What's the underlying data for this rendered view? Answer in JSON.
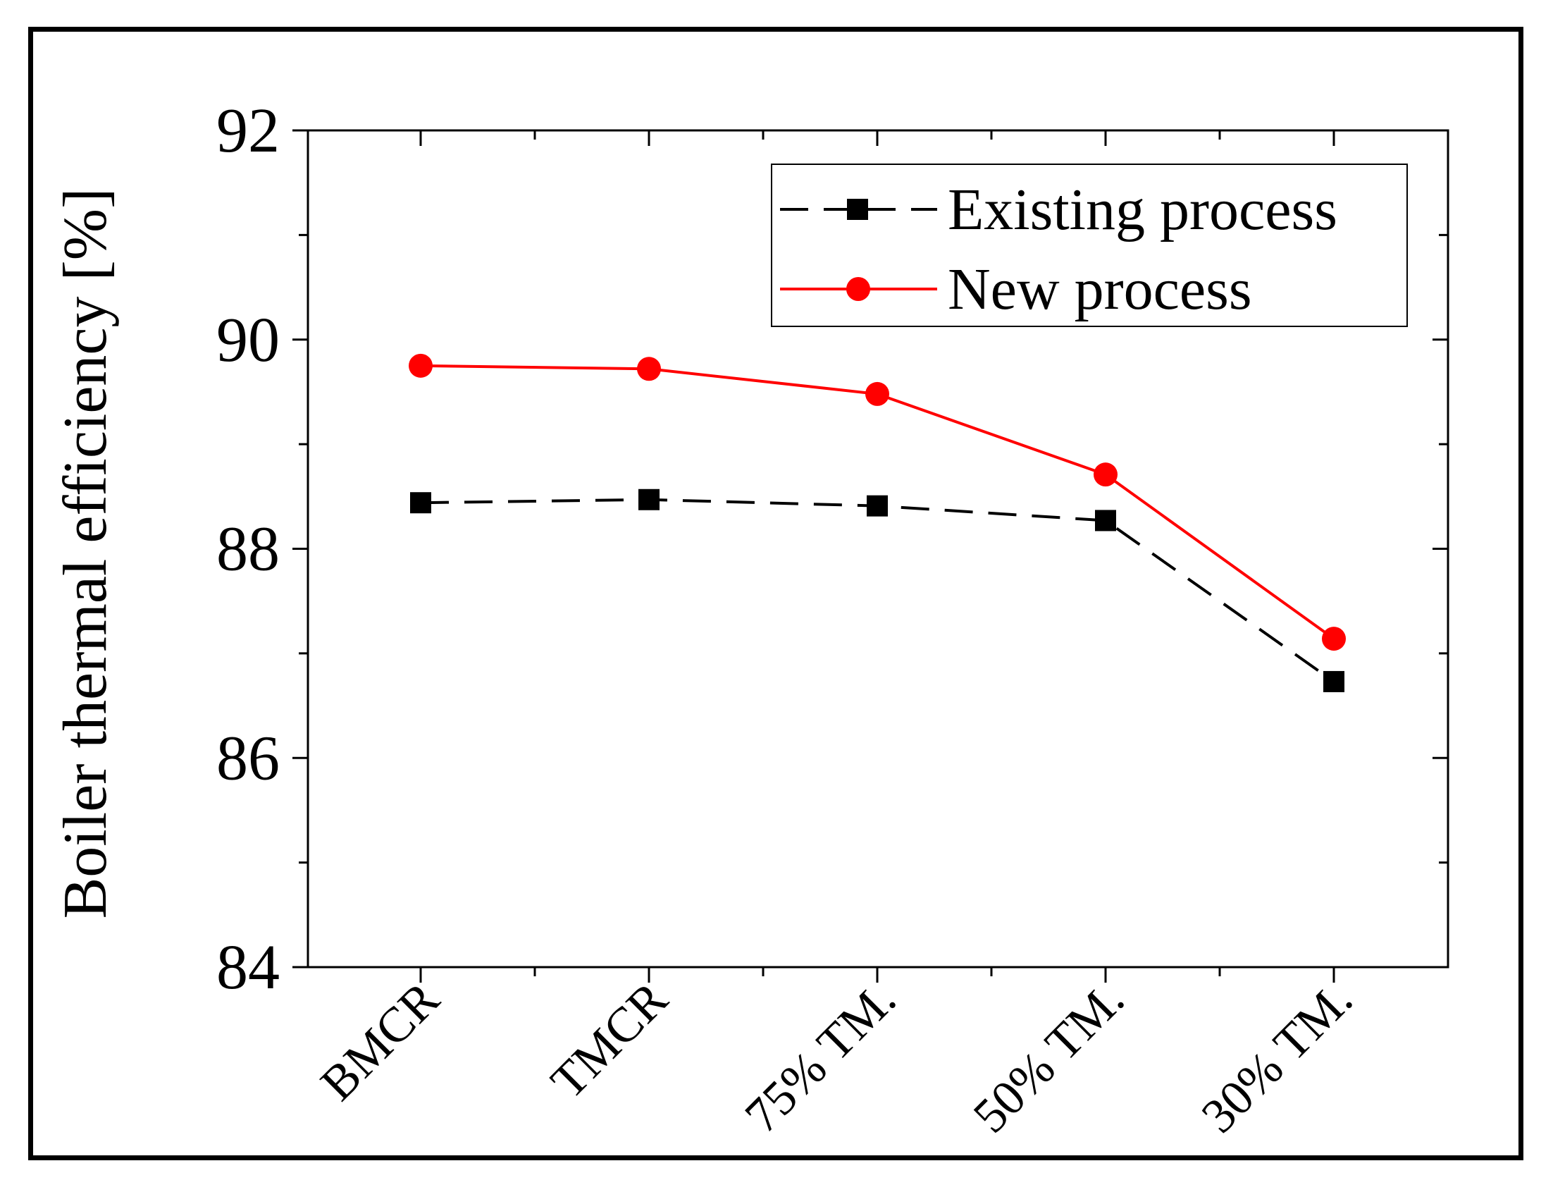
{
  "chart_data": {
    "type": "line",
    "title": "",
    "xlabel": "",
    "ylabel": "Boiler thermal efficiency [%]",
    "categories": [
      "BMCR",
      "TMCR",
      "75% TM.",
      "50% TM.",
      "30% TM."
    ],
    "ylim": [
      84,
      92
    ],
    "yticks": [
      "84",
      "86",
      "88",
      "90",
      "92"
    ],
    "grid": false,
    "legend_position": "top-right",
    "series": [
      {
        "name": "Existing process",
        "values": [
          88.44,
          88.47,
          88.41,
          88.27,
          86.73
        ],
        "color": "#000000",
        "line_style": "dashed",
        "marker": "square"
      },
      {
        "name": "New process",
        "values": [
          89.75,
          89.72,
          89.48,
          88.71,
          87.14
        ],
        "color": "#ff0000",
        "line_style": "solid",
        "marker": "circle"
      }
    ]
  }
}
